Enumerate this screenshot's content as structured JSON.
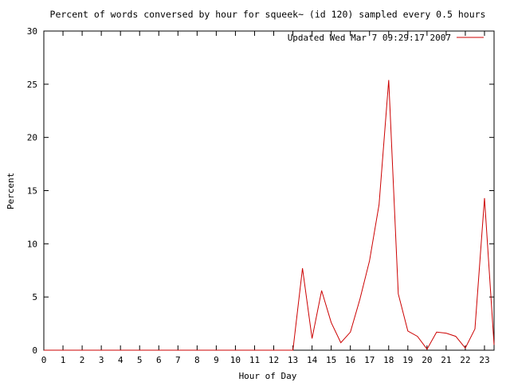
{
  "chart_data": {
    "type": "line",
    "title": "Percent of words conversed by hour for squeek~ (id 120) sampled every 0.5 hours",
    "xlabel": "Hour of Day",
    "ylabel": "Percent",
    "xlim": [
      0,
      23.5
    ],
    "ylim": [
      0,
      30
    ],
    "xticks": [
      "0",
      "1",
      "2",
      "3",
      "4",
      "5",
      "6",
      "7",
      "8",
      "9",
      "10",
      "11",
      "12",
      "13",
      "14",
      "15",
      "16",
      "17",
      "18",
      "19",
      "20",
      "21",
      "22",
      "23"
    ],
    "yticks": [
      "0",
      "5",
      "10",
      "15",
      "20",
      "25",
      "30"
    ],
    "grid": false,
    "legend_position": "top-right",
    "series": [
      {
        "name": "Updated Wed Mar  7 09:29:17 2007",
        "color": "#cc0000",
        "x": [
          0,
          0.5,
          1,
          1.5,
          2,
          2.5,
          3,
          3.5,
          4,
          4.5,
          5,
          5.5,
          6,
          6.5,
          7,
          7.5,
          8,
          8.5,
          9,
          9.5,
          10,
          10.5,
          11,
          11.5,
          12,
          12.5,
          13,
          13.5,
          14,
          14.5,
          15,
          15.5,
          16,
          16.5,
          17,
          17.5,
          18,
          18.5,
          19,
          19.5,
          20,
          20.5,
          21,
          21.5,
          22,
          22.5,
          23,
          23.5
        ],
        "y": [
          0,
          0,
          0,
          0,
          0,
          0,
          0,
          0,
          0,
          0,
          0,
          0,
          0,
          0,
          0,
          0,
          0,
          0,
          0,
          0,
          0,
          0,
          0,
          0,
          0,
          0,
          0,
          7.7,
          1.1,
          5.6,
          2.6,
          0.7,
          1.7,
          4.8,
          8.4,
          13.7,
          25.4,
          5.3,
          1.8,
          1.3,
          0.1,
          1.7,
          1.6,
          1.3,
          0.2,
          2.0,
          14.3,
          0.5
        ]
      }
    ]
  }
}
